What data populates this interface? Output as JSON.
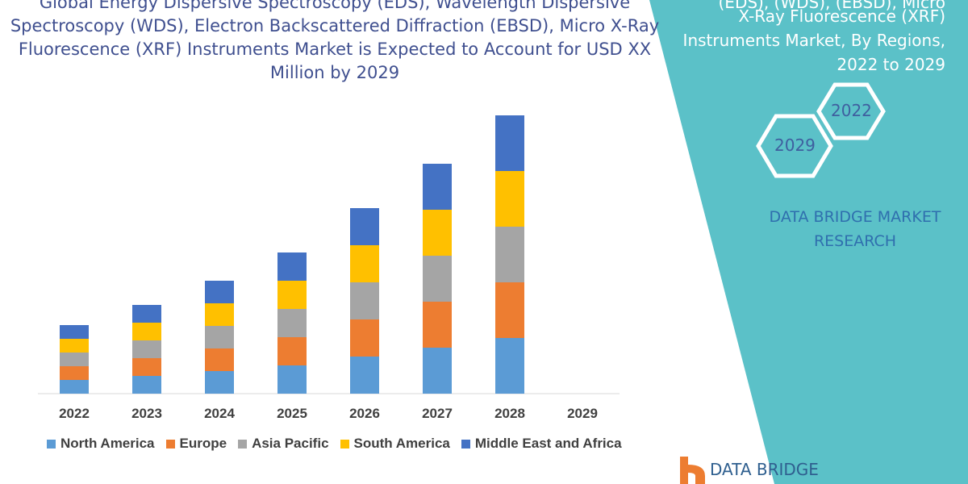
{
  "title": {
    "line1": "Global Energy Dispersive Spectroscopy (EDS), Wavelength Dispersive",
    "line2": "Spectroscopy (WDS), Electron Backscattered Diffraction (EBSD), Micro X-Ray",
    "line3": "Fluorescence (XRF) Instruments Market is Expected to Account for USD XX",
    "line4": "Million by 2029"
  },
  "side_panel": {
    "line1": "(EDS), (WDS), (EBSD), Micro",
    "line2": "X-Ray Fluorescence (XRF)",
    "line3": "Instruments Market, By Regions,",
    "line4": "2022 to 2029",
    "hex_2022": "2022",
    "hex_2029": "2029",
    "brand_line1": "DATA BRIDGE MARKET",
    "brand_line2": "RESEARCH",
    "logo_text": "DATA BRIDGE",
    "background_color": "#5bc1c8"
  },
  "chart_data": {
    "type": "bar",
    "stacked": true,
    "categories": [
      "2022",
      "2023",
      "2024",
      "2025",
      "2026",
      "2027",
      "2028",
      "2029"
    ],
    "series": [
      {
        "name": "North America",
        "color": "#5b9bd5",
        "values": [
          17,
          22,
          28,
          35,
          46,
          57,
          69,
          null
        ]
      },
      {
        "name": "Europe",
        "color": "#ed7d31",
        "values": [
          17,
          22,
          28,
          35,
          46,
          57,
          69,
          null
        ]
      },
      {
        "name": "Asia Pacific",
        "color": "#a5a5a5",
        "values": [
          17,
          22,
          28,
          35,
          46,
          57,
          69,
          null
        ]
      },
      {
        "name": "South America",
        "color": "#ffc000",
        "values": [
          17,
          22,
          28,
          35,
          46,
          57,
          69,
          null
        ]
      },
      {
        "name": "Middle East and Africa",
        "color": "#4472c4",
        "values": [
          17,
          22,
          28,
          35,
          46,
          57,
          69,
          null
        ]
      }
    ],
    "grid": false,
    "legend_position": "bottom"
  }
}
